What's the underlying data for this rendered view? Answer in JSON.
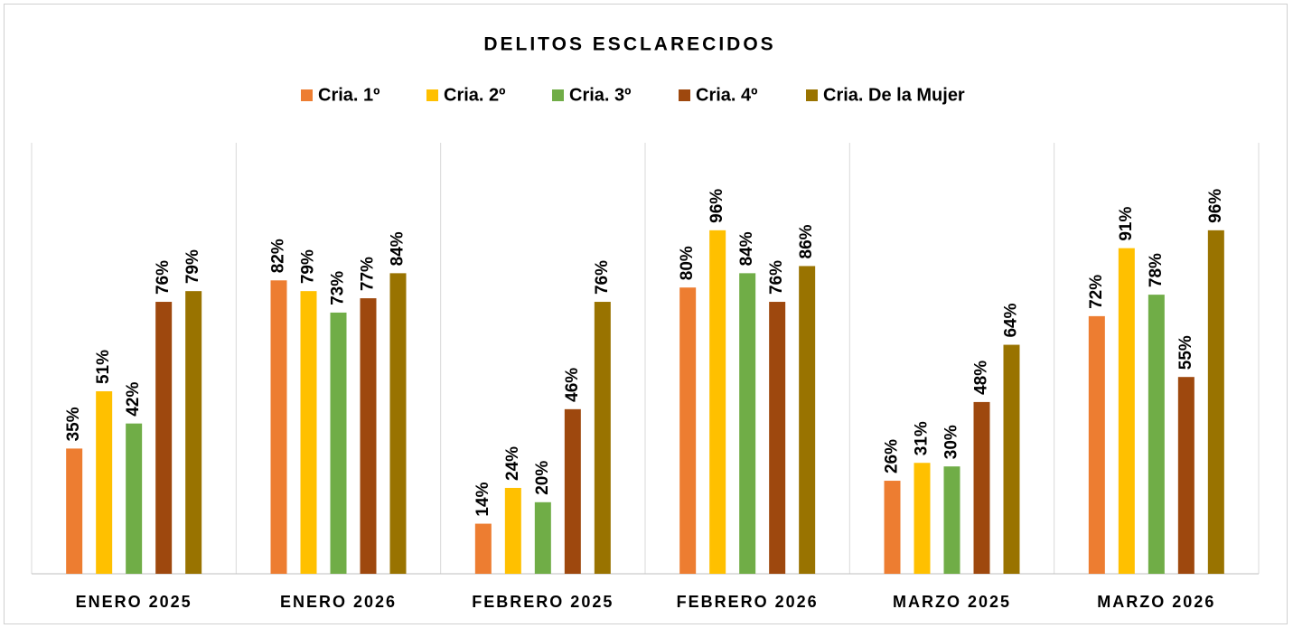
{
  "chart_data": {
    "type": "bar",
    "title": "DELITOS ESCLARECIDOS",
    "categories": [
      "ENERO 2025",
      "ENERO 2026",
      "FEBRERO 2025",
      "FEBRERO 2026",
      "MARZO 2025",
      "MARZO 2026"
    ],
    "series": [
      {
        "name": "Cria. 1º",
        "color": "#ED7D31",
        "values": [
          35,
          82,
          14,
          80,
          26,
          72
        ],
        "value_labels": [
          "35%",
          "82%",
          "14%",
          "80%",
          "26%",
          "72%"
        ]
      },
      {
        "name": "Cria. 2º",
        "color": "#FFC000",
        "values": [
          51,
          79,
          24,
          96,
          31,
          91
        ],
        "value_labels": [
          "51%",
          "79%",
          "24%",
          "96%",
          "31%",
          "91%"
        ]
      },
      {
        "name": "Cria. 3º",
        "color": "#70AD47",
        "values": [
          42,
          73,
          20,
          84,
          30,
          78
        ],
        "value_labels": [
          "42%",
          "73%",
          "20%",
          "84%",
          "30%",
          "78%"
        ]
      },
      {
        "name": "Cria. 4º",
        "color": "#9E480E",
        "values": [
          76,
          77,
          46,
          76,
          48,
          55
        ],
        "value_labels": [
          "76%",
          "77%",
          "46%",
          "76%",
          "48%",
          "55%"
        ]
      },
      {
        "name": "Cria. De la Mujer",
        "color": "#997300",
        "values": [
          79,
          84,
          76,
          86,
          64,
          96
        ],
        "value_labels": [
          "79%",
          "84%",
          "76%",
          "86%",
          "64%",
          "96%"
        ]
      }
    ],
    "ylim": [
      0,
      100
    ],
    "legend": "top"
  }
}
